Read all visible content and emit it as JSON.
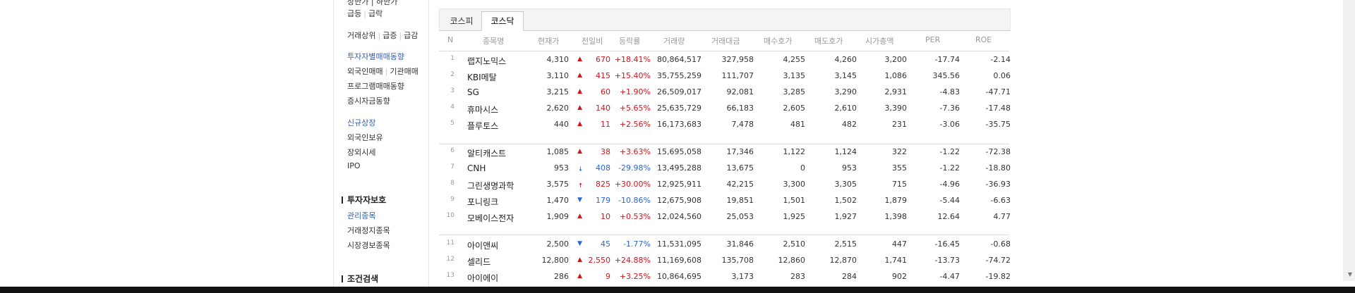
{
  "sidebar": {
    "top_cut": "상한가 | 하한가",
    "surge_fall": [
      "급등",
      "급락"
    ],
    "volume_links": [
      "거래상위",
      "급증",
      "급감"
    ],
    "investor": "투자자별매매동향",
    "trade_links": [
      "외국인매매",
      "기관매매"
    ],
    "program": "프로그램매매동향",
    "fund": "증시자금동향",
    "new_listing": "신규상장",
    "foreign_hold": "외국인보유",
    "otc": "장외시세",
    "ipo": "IPO",
    "protect_head": "투자자보호",
    "managed": "관리종목",
    "halted": "거래정지종목",
    "warning": "시장경보종목",
    "search_head": "조건검색"
  },
  "tabs": [
    "코스피",
    "코스닥"
  ],
  "table": {
    "headers": [
      "N",
      "종목명",
      "현재가",
      "전일비",
      "등락률",
      "거래량",
      "거래대금",
      "매수호가",
      "매도호가",
      "시가총액",
      "PER",
      "ROE"
    ],
    "rows": [
      {
        "n": "1",
        "name": "랩지노믹스",
        "price": "4,310",
        "arrow": "▲",
        "chg": "670",
        "rate": "+18.41%",
        "vol": "80,864,517",
        "amt": "327,958",
        "bid": "4,255",
        "ask": "4,260",
        "cap": "3,200",
        "per": "-17.74",
        "roe": "-2.14",
        "dir": "up"
      },
      {
        "n": "2",
        "name": "KBI메탈",
        "price": "3,110",
        "arrow": "▲",
        "chg": "415",
        "rate": "+15.40%",
        "vol": "35,755,259",
        "amt": "111,707",
        "bid": "3,135",
        "ask": "3,145",
        "cap": "1,086",
        "per": "345.56",
        "roe": "0.06",
        "dir": "up"
      },
      {
        "n": "3",
        "name": "SG",
        "price": "3,215",
        "arrow": "▲",
        "chg": "60",
        "rate": "+1.90%",
        "vol": "26,509,017",
        "amt": "92,081",
        "bid": "3,285",
        "ask": "3,290",
        "cap": "2,931",
        "per": "-4.83",
        "roe": "-47.71",
        "dir": "up"
      },
      {
        "n": "4",
        "name": "휴마시스",
        "price": "2,620",
        "arrow": "▲",
        "chg": "140",
        "rate": "+5.65%",
        "vol": "25,635,729",
        "amt": "66,183",
        "bid": "2,605",
        "ask": "2,610",
        "cap": "3,390",
        "per": "-7.36",
        "roe": "-17.48",
        "dir": "up"
      },
      {
        "n": "5",
        "name": "플루토스",
        "price": "440",
        "arrow": "▲",
        "chg": "11",
        "rate": "+2.56%",
        "vol": "16,173,683",
        "amt": "7,478",
        "bid": "481",
        "ask": "482",
        "cap": "231",
        "per": "-3.06",
        "roe": "-35.75",
        "dir": "up"
      },
      {
        "n": "6",
        "name": "알티캐스트",
        "price": "1,085",
        "arrow": "▲",
        "chg": "38",
        "rate": "+3.63%",
        "vol": "15,695,058",
        "amt": "17,346",
        "bid": "1,122",
        "ask": "1,124",
        "cap": "322",
        "per": "-1.22",
        "roe": "-72.38",
        "dir": "up"
      },
      {
        "n": "7",
        "name": "CNH",
        "price": "953",
        "arrow": "🠇",
        "chg": "408",
        "rate": "-29.98%",
        "vol": "13,495,288",
        "amt": "13,675",
        "bid": "0",
        "ask": "953",
        "cap": "355",
        "per": "-1.22",
        "roe": "-18.80",
        "dir": "down"
      },
      {
        "n": "8",
        "name": "그린생명과학",
        "price": "3,575",
        "arrow": "🠅",
        "chg": "825",
        "rate": "+30.00%",
        "vol": "12,925,911",
        "amt": "42,215",
        "bid": "3,300",
        "ask": "3,305",
        "cap": "715",
        "per": "-4.96",
        "roe": "-36.93",
        "dir": "up"
      },
      {
        "n": "9",
        "name": "포니링크",
        "price": "1,470",
        "arrow": "▼",
        "chg": "179",
        "rate": "-10.86%",
        "vol": "12,675,908",
        "amt": "19,851",
        "bid": "1,501",
        "ask": "1,502",
        "cap": "1,879",
        "per": "-5.44",
        "roe": "-6.63",
        "dir": "down"
      },
      {
        "n": "10",
        "name": "모베이스전자",
        "price": "1,909",
        "arrow": "▲",
        "chg": "10",
        "rate": "+0.53%",
        "vol": "12,024,560",
        "amt": "25,053",
        "bid": "1,925",
        "ask": "1,927",
        "cap": "1,398",
        "per": "12.64",
        "roe": "4.77",
        "dir": "up"
      },
      {
        "n": "11",
        "name": "아이앤씨",
        "price": "2,500",
        "arrow": "▼",
        "chg": "45",
        "rate": "-1.77%",
        "vol": "11,531,095",
        "amt": "31,846",
        "bid": "2,510",
        "ask": "2,515",
        "cap": "447",
        "per": "-16.45",
        "roe": "-0.68",
        "dir": "down"
      },
      {
        "n": "12",
        "name": "셀리드",
        "price": "12,800",
        "arrow": "▲",
        "chg": "2,550",
        "rate": "+24.88%",
        "vol": "11,169,608",
        "amt": "135,708",
        "bid": "12,860",
        "ask": "12,870",
        "cap": "1,741",
        "per": "-13.73",
        "roe": "-74.72",
        "dir": "up"
      },
      {
        "n": "13",
        "name": "아이에이",
        "price": "286",
        "arrow": "▲",
        "chg": "9",
        "rate": "+3.25%",
        "vol": "10,864,695",
        "amt": "3,173",
        "bid": "283",
        "ask": "284",
        "cap": "902",
        "per": "-4.47",
        "roe": "-19.82",
        "dir": "up"
      }
    ]
  }
}
